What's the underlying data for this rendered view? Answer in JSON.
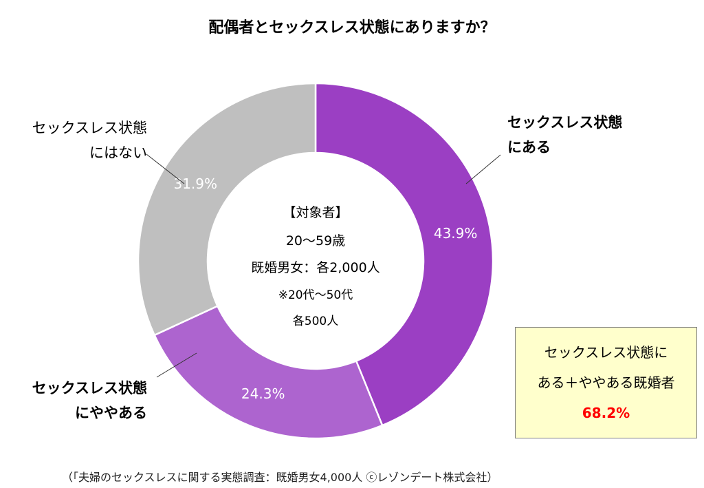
{
  "chart_data": {
    "type": "pie",
    "title": "配偶者とセックスレス状態にありますか？",
    "slices": [
      {
        "label": [
          "セックスレス状態",
          "にある"
        ],
        "value": 43.9,
        "value_label": "43.9%",
        "color": "#9b3fc3"
      },
      {
        "label": [
          "セックスレス状態",
          "にややある"
        ],
        "value": 24.3,
        "value_label": "24.3%",
        "color": "#ad64cf"
      },
      {
        "label": [
          "セックスレス状態",
          "にはない"
        ],
        "value": 31.9,
        "value_label": "31.9%",
        "color": "#bfbfbf"
      }
    ],
    "donut": true,
    "center_text": [
      "【対象者】",
      "20〜59歳",
      "既婚男女：各2,000人",
      "※20代〜50代",
      "各500人"
    ],
    "callout": {
      "lines": [
        "セックスレス状態に",
        "ある＋ややある既婚者"
      ],
      "value": "68.2%",
      "value_color": "#ff0000"
    }
  },
  "source": "（「夫婦のセックスレスに関する実態調査：既婚男女4,000人 ⓒレゾンデート株式会社）"
}
